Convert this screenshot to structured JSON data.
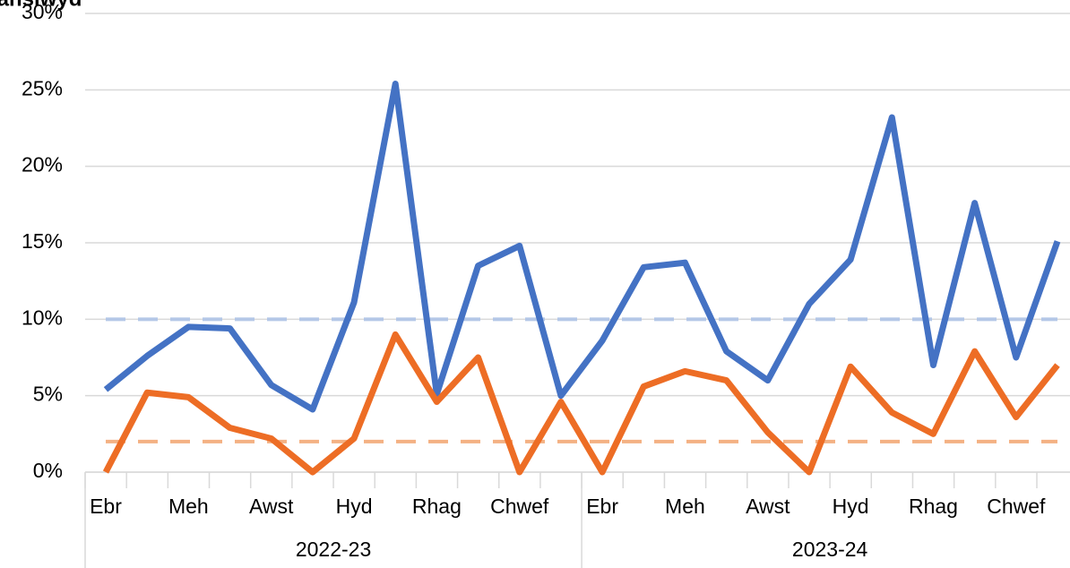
{
  "chart_data": {
    "type": "line",
    "title": "ganslwyd",
    "categories": [
      "Ebr",
      null,
      "Meh",
      null,
      "Awst",
      null,
      "Hyd",
      null,
      "Rhag",
      null,
      "Chwef",
      null,
      "Ebr",
      null,
      "Meh",
      null,
      "Awst",
      null,
      "Hyd",
      null,
      "Rhag",
      null,
      "Chwef",
      null
    ],
    "groups": [
      {
        "label": "2022-23",
        "span": 12
      },
      {
        "label": "2023-24",
        "span": 12
      }
    ],
    "series": [
      {
        "color": "#4472c4",
        "values": [
          5.4,
          7.6,
          9.5,
          9.4,
          5.7,
          4.1,
          11.1,
          25.4,
          5.1,
          13.5,
          14.8,
          5.0,
          8.6,
          13.4,
          13.7,
          7.9,
          6.0,
          11.0,
          13.9,
          23.2,
          7.0,
          17.6,
          7.5,
          15.1
        ]
      },
      {
        "color": "#ed6d25",
        "values": [
          0,
          5.2,
          4.9,
          2.9,
          2.2,
          0,
          2.2,
          9.0,
          4.6,
          7.5,
          0,
          4.6,
          0,
          5.6,
          6.6,
          6.0,
          2.6,
          0,
          6.9,
          3.9,
          2.5,
          7.9,
          3.6,
          7.0
        ]
      }
    ],
    "reference_lines": [
      {
        "value": 10,
        "color": "#b4c7e7"
      },
      {
        "value": 2,
        "color": "#f4b183"
      }
    ],
    "ylim": [
      0,
      30
    ],
    "yticks": [
      {
        "value": 0,
        "label": "0%"
      },
      {
        "value": 5,
        "label": "5%"
      },
      {
        "value": 10,
        "label": "10%"
      },
      {
        "value": 15,
        "label": "15%"
      },
      {
        "value": 20,
        "label": "20%"
      },
      {
        "value": 25,
        "label": "25%"
      },
      {
        "value": 30,
        "label": "30%"
      }
    ],
    "grid": true
  }
}
